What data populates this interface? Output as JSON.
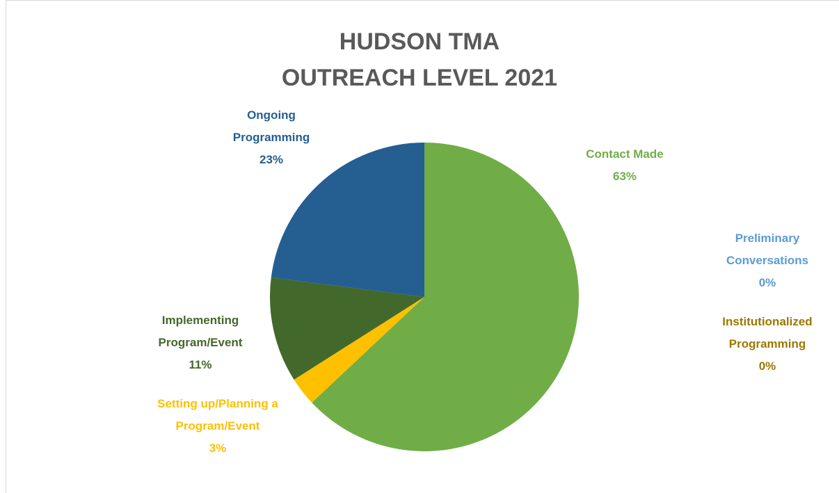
{
  "chart_data": {
    "type": "pie",
    "title": "HUDSON TMA\nOUTREACH LEVEL 2021",
    "categories": [
      "Contact Made",
      "Preliminary Conversations",
      "Institutionalized Programming",
      "Setting up/Planning a Program/Event",
      "Implementing Program/Event",
      "Ongoing Programming"
    ],
    "values": [
      63,
      0,
      0,
      3,
      11,
      23
    ],
    "value_labels": [
      "63%",
      "0%",
      "0%",
      "3%",
      "11%",
      "23%"
    ],
    "colors": [
      "#70ad47",
      "#5b9bd5",
      "#9c7800",
      "#ffc000",
      "#43682b",
      "#255e91"
    ]
  }
}
